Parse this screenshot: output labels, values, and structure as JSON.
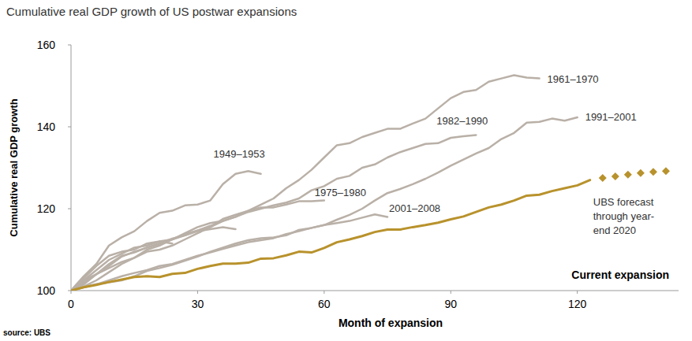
{
  "chart_data": {
    "type": "line",
    "title": "Cumulative real GDP growth of US postwar expansions",
    "x_label": "Month of expansion",
    "y_label": "Cumulative real GDP growth",
    "source": "source: UBS",
    "x": [
      0,
      3,
      6,
      9,
      12,
      15,
      18,
      21,
      24,
      27,
      30,
      33,
      36,
      39,
      42,
      45,
      48,
      51,
      54,
      57,
      60,
      63,
      66,
      69,
      72,
      75,
      78,
      81,
      84,
      87,
      90,
      93,
      96,
      99,
      102,
      105,
      108,
      111,
      114,
      117,
      120,
      123,
      126,
      129,
      132,
      135,
      138,
      141
    ],
    "xlim": [
      0,
      144
    ],
    "xticks": [
      0,
      30,
      60,
      90,
      120
    ],
    "ylim": [
      100,
      160
    ],
    "yticks": [
      100,
      120,
      140,
      160
    ],
    "grid": false,
    "series": [
      {
        "name": "1949–1953",
        "color": "#b9b0a7",
        "type": "line",
        "line_style": "solid",
        "values": [
          100,
          103.5,
          106.5,
          111,
          113,
          114.5,
          117,
          119,
          119.5,
          120.8,
          121,
          122,
          126,
          128.5,
          129.2,
          128.5,
          null,
          null,
          null,
          null,
          null,
          null,
          null,
          null,
          null,
          null,
          null,
          null,
          null,
          null,
          null,
          null,
          null,
          null,
          null,
          null,
          null,
          null,
          null,
          null,
          null,
          null,
          null,
          null,
          null,
          null,
          null,
          null
        ]
      },
      {
        "name": "1961–1970",
        "color": "#b9b0a7",
        "type": "line",
        "line_style": "solid",
        "values": [
          100,
          102,
          104,
          105.5,
          107,
          108,
          109.5,
          110,
          111,
          112.5,
          114,
          115.5,
          117,
          118,
          119.5,
          121,
          122.5,
          125,
          127,
          129.5,
          132.5,
          135.5,
          136,
          137.5,
          138.5,
          139.5,
          139.5,
          140.8,
          142,
          144.5,
          147,
          148.5,
          149,
          151,
          151.8,
          152.6,
          152,
          151.8,
          null,
          null,
          null,
          null,
          null,
          null,
          null,
          null,
          null,
          null
        ]
      },
      {
        "name": "1975–1980",
        "color": "#b9b0a7",
        "type": "line",
        "line_style": "solid",
        "values": [
          100,
          101.5,
          104,
          106.5,
          108.5,
          109.3,
          110.5,
          111.5,
          112.5,
          113.8,
          114.7,
          115.5,
          117.5,
          118.5,
          119.5,
          120.3,
          120.3,
          121,
          121.8,
          121.8,
          122,
          null,
          null,
          null,
          null,
          null,
          null,
          null,
          null,
          null,
          null,
          null,
          null,
          null,
          null,
          null,
          null,
          null,
          null,
          null,
          null,
          null,
          null,
          null,
          null,
          null,
          null,
          null
        ]
      },
      {
        "name": "1982–1990",
        "color": "#b9b0a7",
        "type": "line",
        "line_style": "solid",
        "values": [
          100,
          102.5,
          104,
          106,
          108.3,
          109.5,
          110.5,
          111.5,
          112.7,
          113.5,
          114.7,
          115.8,
          117,
          118,
          119.2,
          120,
          120.8,
          121.5,
          122.5,
          124.5,
          125.5,
          127.3,
          128,
          130,
          130.8,
          132.5,
          133.8,
          134.8,
          135.8,
          136,
          137.3,
          137.7,
          138,
          null,
          null,
          null,
          null,
          null,
          null,
          null,
          null,
          null,
          null,
          null,
          null,
          null,
          null,
          null
        ]
      },
      {
        "name": "1991–2001",
        "color": "#b9b0a7",
        "type": "line",
        "line_style": "solid",
        "values": [
          100,
          100.8,
          101.5,
          102.5,
          103.5,
          104.3,
          105,
          106,
          106.5,
          107.5,
          108.5,
          109.3,
          110.2,
          111,
          111.8,
          112.3,
          112.8,
          113.8,
          114.5,
          115.3,
          116,
          117.3,
          118.5,
          120,
          122,
          123.8,
          124.8,
          126,
          127.3,
          128.8,
          130.5,
          132,
          133.5,
          134.8,
          137,
          138.5,
          141,
          141.2,
          142,
          141.5,
          142.3,
          null,
          null,
          null,
          null,
          null,
          null,
          null
        ]
      },
      {
        "name": "2001–2008",
        "color": "#b9b0a7",
        "type": "line",
        "line_style": "solid",
        "values": [
          100,
          100.8,
          101.6,
          102,
          102.5,
          103.5,
          104.8,
          105.5,
          106.3,
          107.3,
          108.3,
          109.5,
          110.5,
          111.5,
          112.3,
          112.8,
          113,
          113.5,
          114.8,
          115.3,
          116,
          116.5,
          117,
          117.8,
          118.6,
          118,
          null,
          null,
          null,
          null,
          null,
          null,
          null,
          null,
          null,
          null,
          null,
          null,
          null,
          null,
          null,
          null,
          null,
          null,
          null,
          null,
          null,
          null
        ]
      },
      {
        "color": "#b9b0a7",
        "type": "line",
        "line_style": "solid",
        "values": [
          100,
          102.5,
          105,
          107.5,
          109,
          110.5,
          111,
          112,
          112.5,
          113.5,
          114.5,
          115,
          115.5,
          115,
          null,
          null,
          null,
          null,
          null,
          null,
          null,
          null,
          null,
          null,
          null,
          null,
          null,
          null,
          null,
          null,
          null,
          null,
          null,
          null,
          null,
          null,
          null,
          null,
          null,
          null,
          null,
          null,
          null,
          null,
          null,
          null,
          null,
          null
        ]
      },
      {
        "color": "#b9b0a7",
        "type": "line",
        "line_style": "solid",
        "values": [
          100,
          103,
          106,
          108.5,
          109.5,
          110,
          111.5,
          112,
          111.5,
          null,
          null,
          null,
          null,
          null,
          null,
          null,
          null,
          null,
          null,
          null,
          null,
          null,
          null,
          null,
          null,
          null,
          null,
          null,
          null,
          null,
          null,
          null,
          null,
          null,
          null,
          null,
          null,
          null,
          null,
          null,
          null,
          null,
          null,
          null,
          null,
          null,
          null,
          null
        ]
      },
      {
        "color": "#b9b0a7",
        "type": "line",
        "line_style": "solid",
        "values": [
          100,
          101,
          102.5,
          104.5,
          106.5,
          108,
          110,
          111,
          112.5,
          114,
          115.5,
          116.5,
          117,
          null,
          null,
          null,
          null,
          null,
          null,
          null,
          null,
          null,
          null,
          null,
          null,
          null,
          null,
          null,
          null,
          null,
          null,
          null,
          null,
          null,
          null,
          null,
          null,
          null,
          null,
          null,
          null,
          null,
          null,
          null,
          null,
          null,
          null,
          null
        ]
      },
      {
        "name": "Current expansion",
        "color": "#b8922c",
        "type": "line",
        "line_style": "solid",
        "values": [
          100,
          100.8,
          101.4,
          102.1,
          102.7,
          103.3,
          103.5,
          103.3,
          104.1,
          104.3,
          105.3,
          106,
          106.6,
          106.6,
          106.8,
          107.8,
          107.9,
          108.6,
          109.5,
          109.3,
          110.4,
          111.8,
          112.5,
          113.3,
          114.3,
          114.9,
          114.9,
          115.5,
          116,
          116.6,
          117.4,
          118.1,
          119.2,
          120.3,
          121,
          122,
          123.2,
          123.4,
          124.3,
          125,
          125.7,
          127,
          null,
          null,
          null,
          null,
          null,
          null
        ]
      },
      {
        "name": "UBS forecast through year-end 2020",
        "color": "#b8922c",
        "type": "scatter",
        "marker": "diamond",
        "values": [
          null,
          null,
          null,
          null,
          null,
          null,
          null,
          null,
          null,
          null,
          null,
          null,
          null,
          null,
          null,
          null,
          null,
          null,
          null,
          null,
          null,
          null,
          null,
          null,
          null,
          null,
          null,
          null,
          null,
          null,
          null,
          null,
          null,
          null,
          null,
          null,
          null,
          null,
          null,
          null,
          null,
          null,
          127.5,
          127.9,
          128.3,
          128.7,
          129,
          129.2
        ]
      }
    ]
  }
}
